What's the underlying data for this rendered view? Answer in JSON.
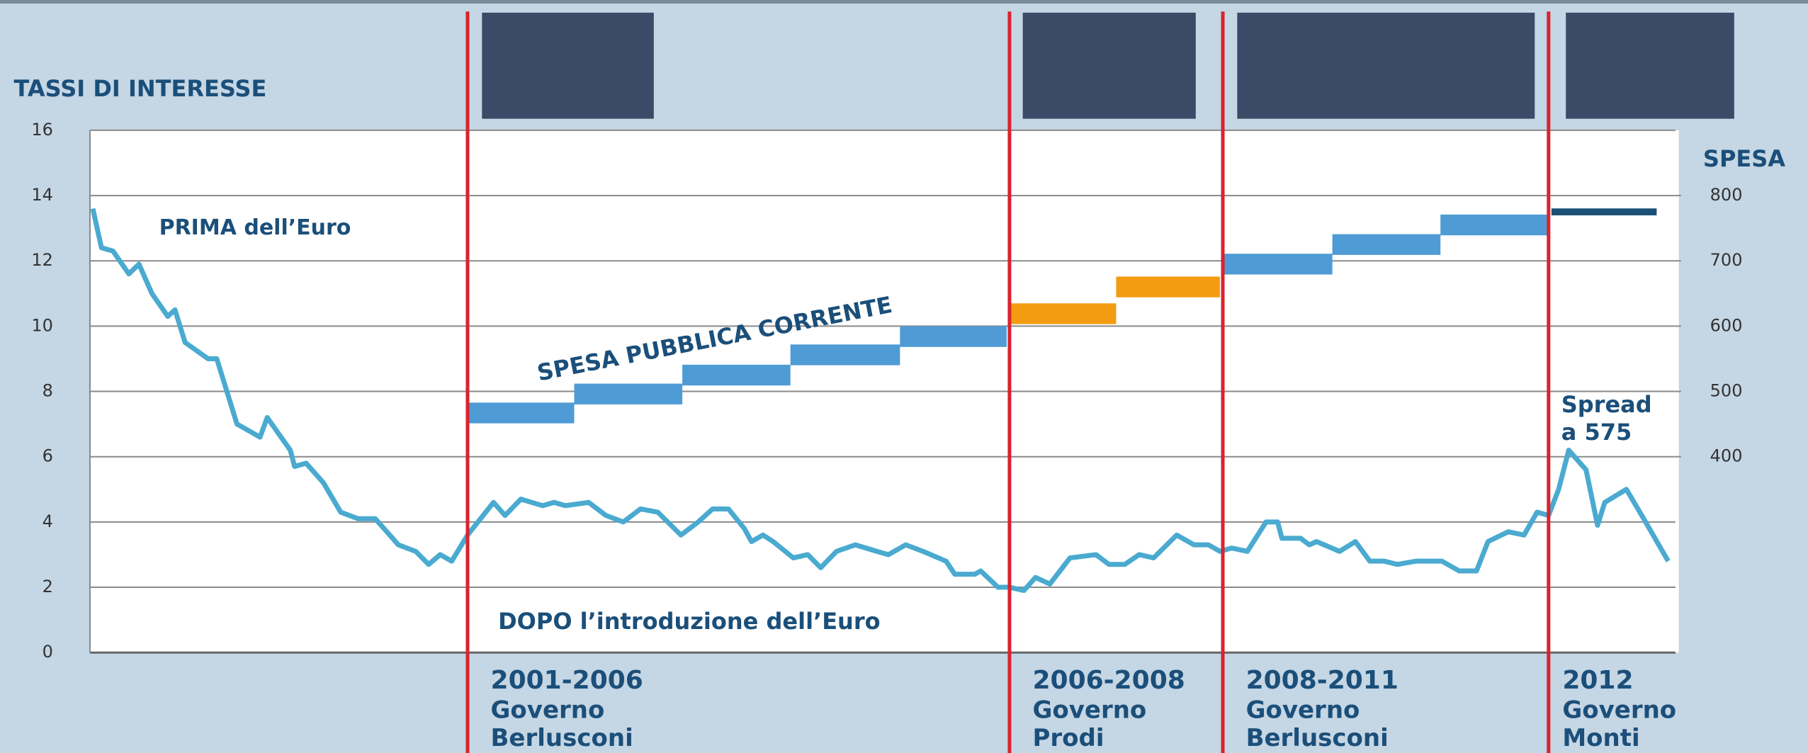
{
  "chart_data": {
    "type": "line",
    "title": "TASSI DI INTERESSE",
    "y2_label": "SPESA",
    "xlim": [
      0,
      110
    ],
    "ylim": [
      0,
      16
    ],
    "yticks": [
      0,
      2,
      4,
      6,
      8,
      10,
      12,
      14,
      16
    ],
    "y2lim": [
      100,
      900
    ],
    "y2ticks": [
      400,
      500,
      600,
      700,
      800
    ],
    "grid": true,
    "series": [
      {
        "color": "#4aaad0",
        "x": [
          0.2,
          0.8,
          1.6,
          2.7,
          3.4,
          4.3,
          5.4,
          5.9,
          6.6,
          8.2,
          8.8,
          10.2,
          11.8,
          12.3,
          13.9,
          14.2,
          15.0,
          16.2,
          17.4,
          18.6,
          19.8,
          21.4,
          22.6,
          23.5,
          24.3,
          25.1,
          26.2,
          28.0,
          28.8,
          29.9,
          31.4,
          32.2,
          33.0,
          34.6,
          35.8,
          37.0,
          38.2,
          39.4,
          41.0,
          42.2,
          43.2,
          44.3,
          45.4,
          45.9,
          46.7,
          47.4,
          48.8,
          49.8,
          50.7,
          51.8,
          53.1,
          54.6,
          55.4,
          56.6,
          57.8,
          59.4,
          60.0,
          61.4,
          61.8,
          63.0,
          63.8,
          64.8,
          65.6,
          66.6,
          68.0,
          69.8,
          70.7,
          71.8,
          72.8,
          73.8,
          75.4,
          76.6,
          77.6,
          78.4,
          79.2,
          80.3,
          81.6,
          82.4,
          82.7,
          84.0,
          84.6,
          85.1,
          86.7,
          87.8,
          88.8,
          89.8,
          90.7,
          92.0,
          93.8,
          95.0,
          96.2,
          97.0,
          98.4,
          99.5,
          100.4,
          101.2,
          101.9,
          102.6,
          103.8,
          104.6,
          105.1,
          106.6,
          107.8,
          109.5
        ],
        "values": [
          13.6,
          12.4,
          12.3,
          11.6,
          11.9,
          11.0,
          10.3,
          10.5,
          9.5,
          9.0,
          9.0,
          7.0,
          6.6,
          7.2,
          6.2,
          5.7,
          5.8,
          5.2,
          4.3,
          4.1,
          4.1,
          3.3,
          3.1,
          2.7,
          3.0,
          2.8,
          3.6,
          4.6,
          4.2,
          4.7,
          4.5,
          4.6,
          4.5,
          4.6,
          4.2,
          4.0,
          4.4,
          4.3,
          3.6,
          4.0,
          4.4,
          4.4,
          3.8,
          3.4,
          3.6,
          3.4,
          2.9,
          3.0,
          2.6,
          3.1,
          3.3,
          3.1,
          3.0,
          3.3,
          3.1,
          2.8,
          2.4,
          2.4,
          2.5,
          2.0,
          2.0,
          1.9,
          2.3,
          2.1,
          2.9,
          3.0,
          2.7,
          2.7,
          3.0,
          2.9,
          3.6,
          3.3,
          3.3,
          3.1,
          3.2,
          3.1,
          4.0,
          4.0,
          3.5,
          3.5,
          3.3,
          3.4,
          3.1,
          3.4,
          2.8,
          2.8,
          2.7,
          2.8,
          2.8,
          2.5,
          2.5,
          3.4,
          3.7,
          3.6,
          4.3,
          4.2,
          5.0,
          6.2,
          5.6,
          3.9,
          4.6,
          5.0,
          4.1,
          2.8
        ]
      },
      {
        "name": "SPESA PUBBLICA CORRENTE",
        "type": "step",
        "axis": "y2",
        "x": [
          26.3,
          33.6,
          41.1,
          48.6,
          56.2,
          63.8,
          71.2,
          78.7,
          86.2,
          93.7,
          101.4
        ],
        "x_end": [
          33.6,
          41.1,
          48.6,
          56.2,
          63.6,
          71.2,
          78.4,
          86.2,
          93.7,
          101.1,
          108.7
        ],
        "values": [
          467,
          496,
          525,
          556,
          584,
          619,
          660,
          695,
          725,
          755,
          775
        ],
        "colors": [
          "#4f9bd5",
          "#4f9bd5",
          "#4f9bd5",
          "#4f9bd5",
          "#4f9bd5",
          "#f39c12",
          "#f39c12",
          "#4f9bd5",
          "#4f9bd5",
          "#4f9bd5",
          "#1a5075"
        ]
      }
    ],
    "periods": [
      {
        "x": 26.2,
        "years": "2001-2006",
        "lines": [
          "Governo",
          "Berlusconi"
        ]
      },
      {
        "x": 63.8,
        "years": "2006-2008",
        "lines": [
          "Governo",
          "Prodi"
        ]
      },
      {
        "x": 78.6,
        "years": "2008-2011",
        "lines": [
          "Governo",
          "Berlusconi"
        ]
      },
      {
        "x": 101.2,
        "years": "2012",
        "lines": [
          "Governo",
          "Monti"
        ]
      }
    ],
    "annotations": [
      {
        "text": [
          "PRIMA dell’Euro"
        ]
      },
      {
        "text": [
          "DOPO l’introduzione dell’Euro"
        ]
      },
      {
        "text": [
          "Spread",
          "a 575"
        ]
      }
    ]
  }
}
